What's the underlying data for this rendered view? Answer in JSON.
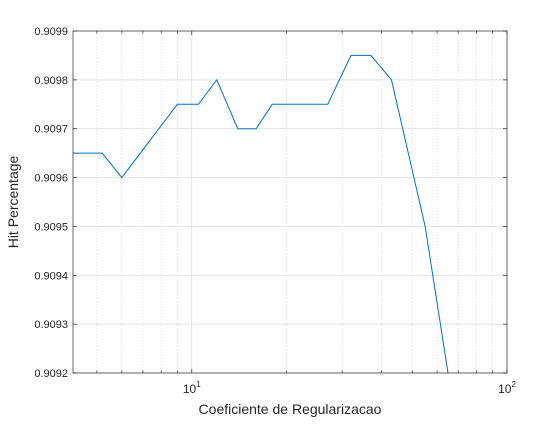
{
  "chart_data": {
    "type": "line",
    "xlabel": "Coeficiente de Regularizacao",
    "ylabel": "Hit Percentage",
    "xscale": "log",
    "xlim": [
      4.2,
      100
    ],
    "ylim": [
      0.9092,
      0.9099
    ],
    "grid": "on",
    "minor_grid": "on",
    "yticks": [
      0.9092,
      0.9093,
      0.9094,
      0.9095,
      0.9096,
      0.9097,
      0.9098,
      0.9099
    ],
    "ytick_labels": [
      "0.9092",
      "0.9093",
      "0.9094",
      "0.9095",
      "0.9096",
      "0.9097",
      "0.9098",
      "0.9099"
    ],
    "xticks": [
      10,
      100
    ],
    "xtick_labels": [
      {
        "base": "10",
        "exp": "1"
      },
      {
        "base": "10",
        "exp": "2"
      }
    ],
    "line_color": "#0072bd",
    "series": [
      {
        "x": [
          4.2,
          5.2,
          6.0,
          9.0,
          10.5,
          12.0,
          14.0,
          16.0,
          18.0,
          21.0,
          27.0,
          32.0,
          37.0,
          43.0,
          55.0,
          65.0
        ],
        "y": [
          0.90965,
          0.90965,
          0.9096,
          0.90975,
          0.90975,
          0.9098,
          0.9097,
          0.9097,
          0.90975,
          0.90975,
          0.90975,
          0.90985,
          0.90985,
          0.9098,
          0.9095,
          0.9092
        ]
      }
    ]
  }
}
